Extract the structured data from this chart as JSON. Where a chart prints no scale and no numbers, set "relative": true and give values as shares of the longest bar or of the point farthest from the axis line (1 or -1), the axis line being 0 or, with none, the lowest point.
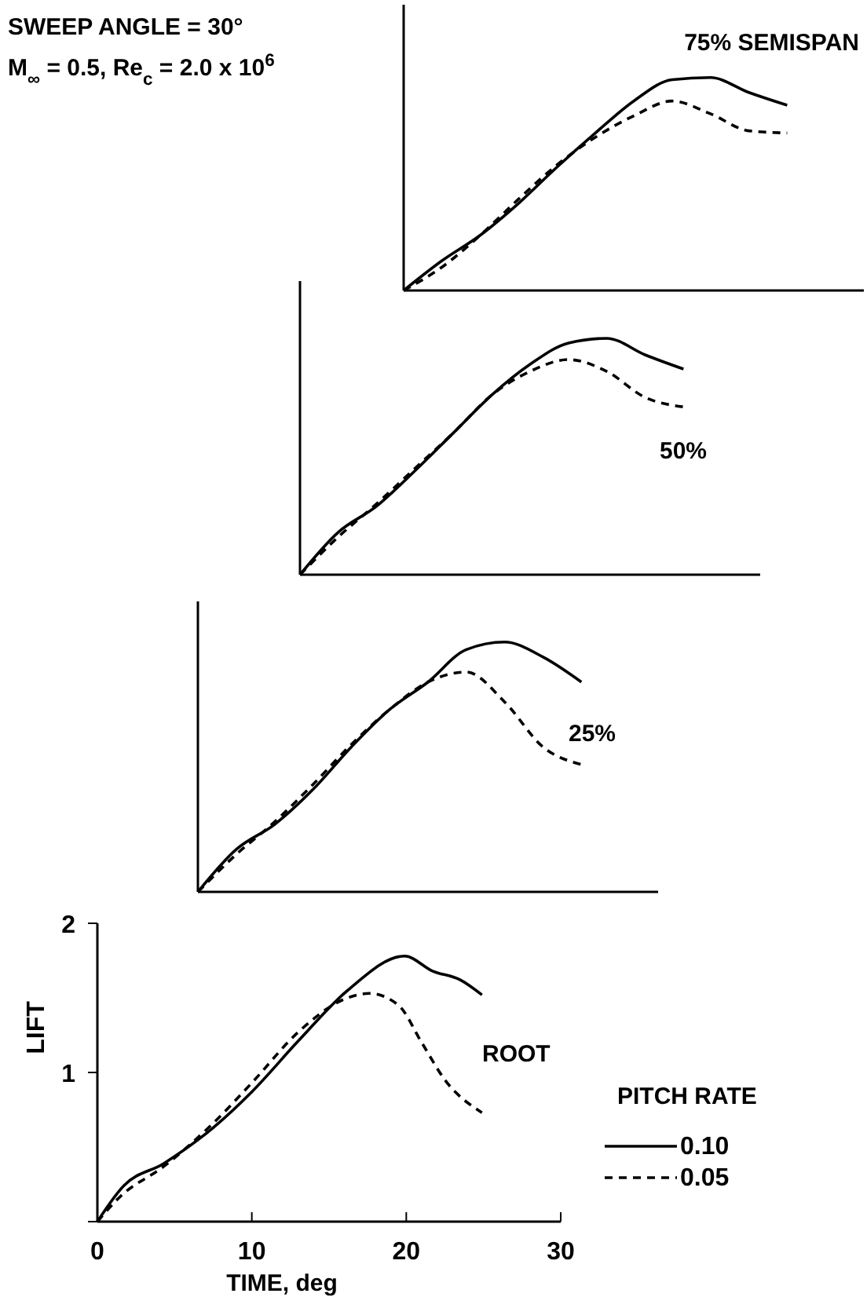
{
  "chart_data": [
    {
      "type": "line",
      "relative": true,
      "categories": [
        null,
        null,
        null,
        null,
        null,
        null,
        null,
        null,
        null,
        null,
        null,
        null,
        null
      ],
      "annotations": [
        "SWEEP ANGLE = 30°",
        "M$_{∞}$ = 0.5, Re$_{c}$ = 2.0 x 10$^{6}$",
        "75% SEMISPAN"
      ],
      "series": [
        {
          "color": "#000000",
          "line_style": "solid",
          "values": [
            0,
            0.14,
            0.26,
            0.41,
            0.58,
            0.74,
            0.89,
            0.99,
            1,
            0.93,
            0.87,
            null,
            null
          ]
        },
        {
          "color": "#000000",
          "line_style": "dashed",
          "values": [
            0,
            0.11,
            0.26,
            0.43,
            0.59,
            0.72,
            0.82,
            0.89,
            0.83,
            0.75,
            0.74,
            null,
            null
          ]
        }
      ]
    },
    {
      "type": "line",
      "relative": true,
      "categories": [
        null,
        null,
        null,
        null,
        null,
        null,
        null,
        null,
        null,
        null,
        null,
        null,
        null
      ],
      "annotations": [
        "50%"
      ],
      "series": [
        {
          "color": "#000000",
          "line_style": "solid",
          "values": [
            0,
            0.18,
            0.29,
            0.44,
            0.6,
            0.76,
            0.89,
            0.98,
            1,
            0.93,
            0.87,
            null,
            null
          ]
        },
        {
          "color": "#000000",
          "line_style": "dashed",
          "values": [
            0,
            0.16,
            0.3,
            0.45,
            0.6,
            0.76,
            0.86,
            0.91,
            0.86,
            0.75,
            0.71,
            null,
            null
          ]
        }
      ]
    },
    {
      "type": "line",
      "relative": true,
      "categories": [
        null,
        null,
        null,
        null,
        null,
        null,
        null,
        null,
        null,
        null,
        null,
        null,
        null
      ],
      "annotations": [
        "25%"
      ],
      "series": [
        {
          "color": "#000000",
          "line_style": "solid",
          "values": [
            0,
            0.17,
            0.27,
            0.41,
            0.58,
            0.73,
            0.84,
            0.97,
            1,
            0.94,
            0.84,
            null,
            null
          ]
        },
        {
          "color": "#000000",
          "line_style": "dashed",
          "values": [
            0,
            0.15,
            0.28,
            0.43,
            0.59,
            0.73,
            0.84,
            0.88,
            0.76,
            0.58,
            0.51,
            null,
            null
          ]
        }
      ]
    },
    {
      "type": "line",
      "xlabel": "TIME, deg",
      "ylabel": "LIFT",
      "xlim": [
        0,
        30
      ],
      "ylim": [
        0,
        2
      ],
      "xticks": [
        0,
        10,
        20,
        30
      ],
      "yticks": [
        {
          "value": 0,
          "label": null
        },
        1,
        2
      ],
      "legend": "right",
      "legend_title": "PITCH RATE",
      "annotations": [
        "ROOT"
      ],
      "series": [
        {
          "name": "0.10",
          "color": "#000000",
          "line_style": "solid",
          "x": [
            0,
            1.7,
            4.3,
            7.5,
            10,
            13,
            16.2,
            19.9,
            21.7,
            23.5,
            24.9
          ],
          "values": [
            0,
            0.24,
            0.39,
            0.63,
            0.87,
            1.21,
            1.55,
            1.78,
            1.68,
            1.62,
            1.52
          ]
        },
        {
          "name": "0.05",
          "color": "#000000",
          "line_style": "dashed",
          "x": [
            0,
            1.5,
            4.3,
            7.5,
            10,
            13,
            16.2,
            17.6,
            19.5,
            21,
            22.5,
            24.9
          ],
          "values": [
            0,
            0.17,
            0.37,
            0.66,
            0.93,
            1.27,
            1.5,
            1.53,
            1.45,
            1.2,
            0.95,
            0.73
          ]
        }
      ]
    }
  ]
}
